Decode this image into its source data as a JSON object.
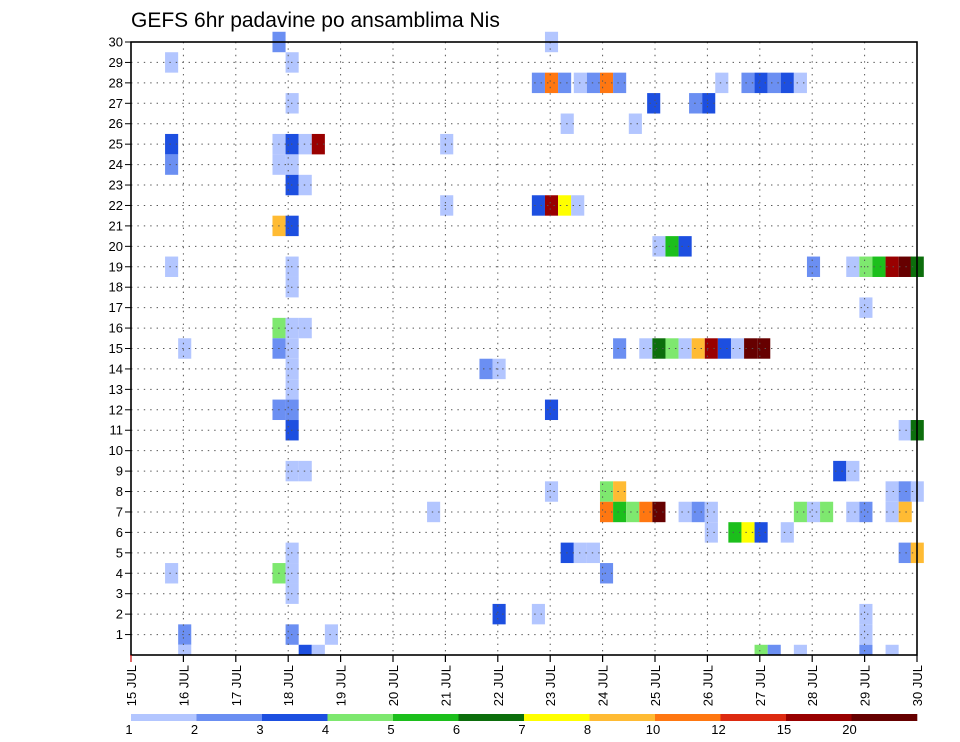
{
  "title": "GEFS 6hr padavine po ansamblima Nis",
  "chart_data": {
    "type": "heatmap",
    "title": "GEFS 6hr padavine po ansamblima Nis",
    "x_labels": [
      "15 JUL",
      "16 JUL",
      "17 JUL",
      "18 JUL",
      "19 JUL",
      "20 JUL",
      "21 JUL",
      "22 JUL",
      "23 JUL",
      "24 JUL",
      "25 JUL",
      "26 JUL",
      "27 JUL",
      "28 JUL",
      "29 JUL",
      "30 JUL"
    ],
    "y_labels": [
      "1",
      "2",
      "3",
      "4",
      "5",
      "6",
      "7",
      "8",
      "9",
      "10",
      "11",
      "12",
      "13",
      "14",
      "15",
      "16",
      "17",
      "18",
      "19",
      "20",
      "21",
      "22",
      "23",
      "24",
      "25",
      "26",
      "27",
      "28",
      "29",
      "30"
    ],
    "xlim": [
      0,
      15
    ],
    "ylim": [
      0,
      30
    ],
    "grid": true,
    "legend_placement": "bottom",
    "color_legend": {
      "labels": [
        "1",
        "2",
        "3",
        "4",
        "5",
        "6",
        "7",
        "8",
        "10",
        "12",
        "15",
        "20"
      ],
      "colors": [
        "#b3c6ff",
        "#6b8ff2",
        "#1d4fe0",
        "#7ee86f",
        "#1cbf1c",
        "#0c6e0c",
        "#ffff00",
        "#ffbb33",
        "#ff7711",
        "#dd2a10",
        "#990000",
        "#660000"
      ]
    },
    "cells": [
      {
        "member": 30,
        "x": 2.7,
        "v": 2
      },
      {
        "member": 30,
        "x": 7.9,
        "v": 1
      },
      {
        "member": 29,
        "x": 0.65,
        "v": 1
      },
      {
        "member": 29,
        "x": 2.95,
        "v": 1
      },
      {
        "member": 28,
        "x": 7.65,
        "v": 2
      },
      {
        "member": 28,
        "x": 7.9,
        "v": 10
      },
      {
        "member": 28,
        "x": 8.15,
        "v": 2
      },
      {
        "member": 28,
        "x": 8.45,
        "v": 1
      },
      {
        "member": 28,
        "x": 8.7,
        "v": 2
      },
      {
        "member": 28,
        "x": 8.95,
        "v": 10
      },
      {
        "member": 28,
        "x": 9.2,
        "v": 2
      },
      {
        "member": 28,
        "x": 11.15,
        "v": 1
      },
      {
        "member": 28,
        "x": 11.65,
        "v": 2
      },
      {
        "member": 28,
        "x": 11.9,
        "v": 3
      },
      {
        "member": 28,
        "x": 12.15,
        "v": 2
      },
      {
        "member": 28,
        "x": 12.4,
        "v": 3
      },
      {
        "member": 28,
        "x": 12.65,
        "v": 1
      },
      {
        "member": 27,
        "x": 2.95,
        "v": 1
      },
      {
        "member": 27,
        "x": 9.85,
        "v": 3
      },
      {
        "member": 27,
        "x": 10.65,
        "v": 2
      },
      {
        "member": 27,
        "x": 10.9,
        "v": 3
      },
      {
        "member": 26,
        "x": 8.2,
        "v": 1
      },
      {
        "member": 26,
        "x": 9.5,
        "v": 1
      },
      {
        "member": 25,
        "x": 0.65,
        "v": 3
      },
      {
        "member": 25,
        "x": 2.7,
        "v": 1
      },
      {
        "member": 25,
        "x": 2.95,
        "v": 3
      },
      {
        "member": 25,
        "x": 3.2,
        "v": 1
      },
      {
        "member": 25,
        "x": 3.45,
        "v": 15
      },
      {
        "member": 25,
        "x": 5.9,
        "v": 1
      },
      {
        "member": 24,
        "x": 0.65,
        "v": 2
      },
      {
        "member": 24,
        "x": 2.7,
        "v": 1
      },
      {
        "member": 24,
        "x": 2.95,
        "v": 1
      },
      {
        "member": 23,
        "x": 2.95,
        "v": 3
      },
      {
        "member": 23,
        "x": 3.2,
        "v": 1
      },
      {
        "member": 22,
        "x": 5.9,
        "v": 1
      },
      {
        "member": 22,
        "x": 7.65,
        "v": 3
      },
      {
        "member": 22,
        "x": 7.9,
        "v": 15
      },
      {
        "member": 22,
        "x": 8.15,
        "v": 7
      },
      {
        "member": 22,
        "x": 8.4,
        "v": 1
      },
      {
        "member": 21,
        "x": 2.7,
        "v": 8
      },
      {
        "member": 21,
        "x": 2.95,
        "v": 3
      },
      {
        "member": 20,
        "x": 9.95,
        "v": 1
      },
      {
        "member": 20,
        "x": 10.2,
        "v": 5
      },
      {
        "member": 20,
        "x": 10.45,
        "v": 3
      },
      {
        "member": 19,
        "x": 0.65,
        "v": 1
      },
      {
        "member": 19,
        "x": 2.95,
        "v": 1
      },
      {
        "member": 19,
        "x": 12.9,
        "v": 2
      },
      {
        "member": 19,
        "x": 13.65,
        "v": 1
      },
      {
        "member": 19,
        "x": 13.9,
        "v": 4
      },
      {
        "member": 19,
        "x": 14.15,
        "v": 5
      },
      {
        "member": 19,
        "x": 14.4,
        "v": 15
      },
      {
        "member": 19,
        "x": 14.65,
        "v": 20
      },
      {
        "member": 19,
        "x": 14.88,
        "v": 6
      },
      {
        "member": 18,
        "x": 2.95,
        "v": 1
      },
      {
        "member": 17,
        "x": 13.9,
        "v": 1
      },
      {
        "member": 16,
        "x": 2.7,
        "v": 4
      },
      {
        "member": 16,
        "x": 2.95,
        "v": 1
      },
      {
        "member": 16,
        "x": 3.2,
        "v": 1
      },
      {
        "member": 15,
        "x": 0.9,
        "v": 1
      },
      {
        "member": 15,
        "x": 2.7,
        "v": 2
      },
      {
        "member": 15,
        "x": 2.95,
        "v": 1
      },
      {
        "member": 15,
        "x": 9.2,
        "v": 2
      },
      {
        "member": 15,
        "x": 9.7,
        "v": 1
      },
      {
        "member": 15,
        "x": 9.95,
        "v": 6
      },
      {
        "member": 15,
        "x": 10.2,
        "v": 4
      },
      {
        "member": 15,
        "x": 10.45,
        "v": 1
      },
      {
        "member": 15,
        "x": 10.7,
        "v": 8
      },
      {
        "member": 15,
        "x": 10.95,
        "v": 15
      },
      {
        "member": 15,
        "x": 11.2,
        "v": 3
      },
      {
        "member": 15,
        "x": 11.45,
        "v": 1
      },
      {
        "member": 15,
        "x": 11.7,
        "v": 20
      },
      {
        "member": 15,
        "x": 11.95,
        "v": 20
      },
      {
        "member": 14,
        "x": 2.95,
        "v": 1
      },
      {
        "member": 14,
        "x": 6.65,
        "v": 2
      },
      {
        "member": 14,
        "x": 6.9,
        "v": 1
      },
      {
        "member": 13,
        "x": 2.95,
        "v": 1
      },
      {
        "member": 12,
        "x": 2.7,
        "v": 2
      },
      {
        "member": 12,
        "x": 2.95,
        "v": 2
      },
      {
        "member": 12,
        "x": 7.9,
        "v": 3
      },
      {
        "member": 11,
        "x": 2.95,
        "v": 3
      },
      {
        "member": 11,
        "x": 14.65,
        "v": 1
      },
      {
        "member": 11,
        "x": 14.88,
        "v": 6
      },
      {
        "member": 9,
        "x": 2.95,
        "v": 1
      },
      {
        "member": 9,
        "x": 3.2,
        "v": 1
      },
      {
        "member": 9,
        "x": 13.4,
        "v": 3
      },
      {
        "member": 9,
        "x": 13.65,
        "v": 1
      },
      {
        "member": 8,
        "x": 7.9,
        "v": 1
      },
      {
        "member": 8,
        "x": 8.95,
        "v": 4
      },
      {
        "member": 8,
        "x": 9.2,
        "v": 8
      },
      {
        "member": 8,
        "x": 14.4,
        "v": 1
      },
      {
        "member": 8,
        "x": 14.65,
        "v": 2
      },
      {
        "member": 8,
        "x": 14.88,
        "v": 1
      },
      {
        "member": 7,
        "x": 5.65,
        "v": 1
      },
      {
        "member": 7,
        "x": 8.95,
        "v": 10
      },
      {
        "member": 7,
        "x": 9.2,
        "v": 5
      },
      {
        "member": 7,
        "x": 9.45,
        "v": 4
      },
      {
        "member": 7,
        "x": 9.7,
        "v": 10
      },
      {
        "member": 7,
        "x": 9.95,
        "v": 20
      },
      {
        "member": 7,
        "x": 10.45,
        "v": 1
      },
      {
        "member": 7,
        "x": 10.7,
        "v": 2
      },
      {
        "member": 7,
        "x": 10.95,
        "v": 1
      },
      {
        "member": 7,
        "x": 12.65,
        "v": 4
      },
      {
        "member": 7,
        "x": 12.9,
        "v": 1
      },
      {
        "member": 7,
        "x": 13.15,
        "v": 4
      },
      {
        "member": 7,
        "x": 13.65,
        "v": 1
      },
      {
        "member": 7,
        "x": 13.9,
        "v": 2
      },
      {
        "member": 7,
        "x": 14.4,
        "v": 1
      },
      {
        "member": 7,
        "x": 14.65,
        "v": 8
      },
      {
        "member": 6,
        "x": 10.95,
        "v": 1
      },
      {
        "member": 6,
        "x": 11.4,
        "v": 5
      },
      {
        "member": 6,
        "x": 11.65,
        "v": 7
      },
      {
        "member": 6,
        "x": 11.9,
        "v": 3
      },
      {
        "member": 6,
        "x": 12.4,
        "v": 1
      },
      {
        "member": 5,
        "x": 2.95,
        "v": 1
      },
      {
        "member": 5,
        "x": 8.2,
        "v": 3
      },
      {
        "member": 5,
        "x": 8.45,
        "v": 1
      },
      {
        "member": 5,
        "x": 8.7,
        "v": 1
      },
      {
        "member": 5,
        "x": 14.65,
        "v": 2
      },
      {
        "member": 5,
        "x": 14.88,
        "v": 8
      },
      {
        "member": 4,
        "x": 0.65,
        "v": 1
      },
      {
        "member": 4,
        "x": 2.7,
        "v": 4
      },
      {
        "member": 4,
        "x": 2.95,
        "v": 1
      },
      {
        "member": 4,
        "x": 8.95,
        "v": 2
      },
      {
        "member": 3,
        "x": 2.95,
        "v": 1
      },
      {
        "member": 2,
        "x": 6.9,
        "v": 3
      },
      {
        "member": 2,
        "x": 7.65,
        "v": 1
      },
      {
        "member": 2,
        "x": 13.9,
        "v": 1
      },
      {
        "member": 1,
        "x": 0.9,
        "v": 2
      },
      {
        "member": 1,
        "x": 2.95,
        "v": 2
      },
      {
        "member": 1,
        "x": 3.7,
        "v": 1
      },
      {
        "member": 1,
        "x": 13.9,
        "v": 1
      },
      {
        "member": 0,
        "x": 0.9,
        "v": 1
      },
      {
        "member": 0,
        "x": 3.2,
        "v": 3
      },
      {
        "member": 0,
        "x": 3.45,
        "v": 1
      },
      {
        "member": 0,
        "x": 11.9,
        "v": 4
      },
      {
        "member": 0,
        "x": 12.15,
        "v": 2
      },
      {
        "member": 0,
        "x": 12.65,
        "v": 1
      },
      {
        "member": 0,
        "x": 13.9,
        "v": 2
      },
      {
        "member": 0,
        "x": 14.4,
        "v": 1
      }
    ]
  }
}
